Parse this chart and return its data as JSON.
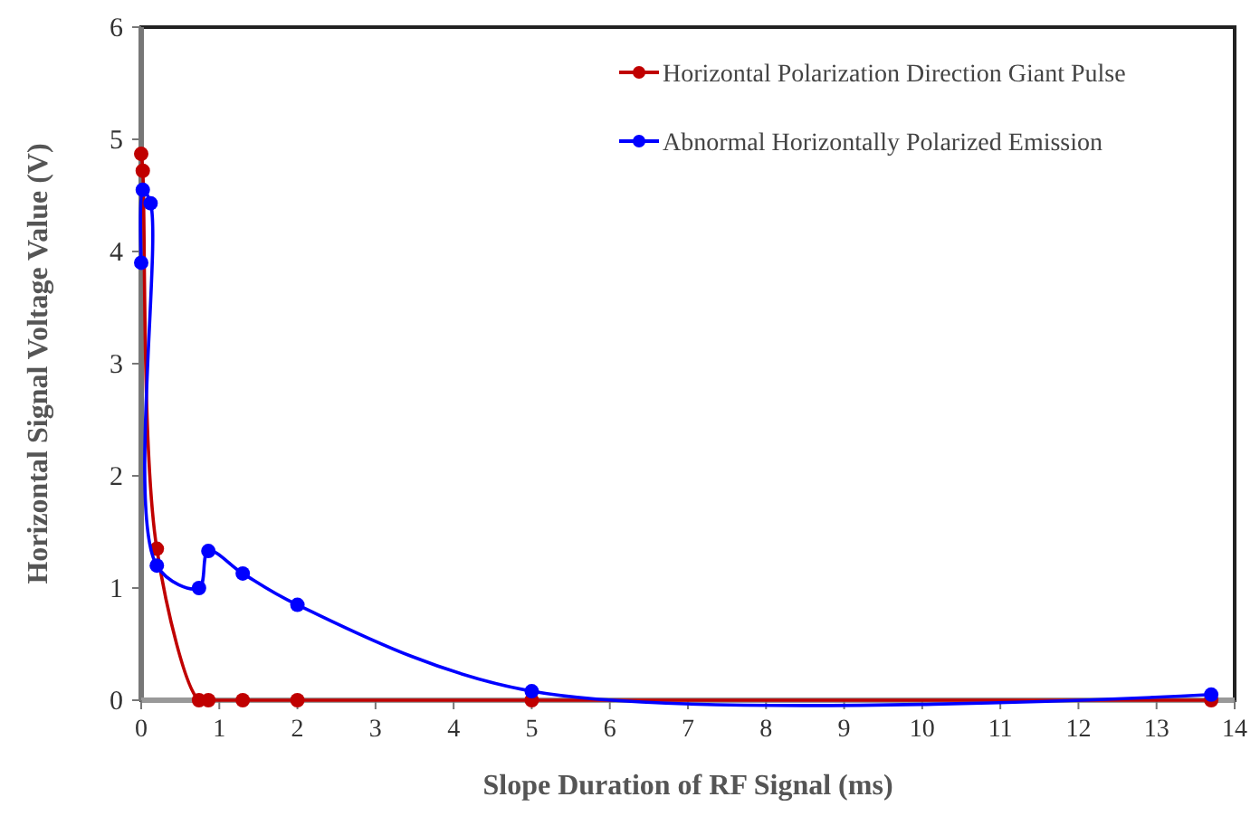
{
  "chart_data": {
    "type": "line",
    "xlabel": "Slope Duration of RF Signal (ms)",
    "ylabel": "Horizontal Signal Voltage Value (V)",
    "xlim": [
      0,
      14
    ],
    "xticks": [
      0,
      1,
      2,
      3,
      4,
      5,
      6,
      7,
      8,
      9,
      10,
      11,
      12,
      13,
      14
    ],
    "ylim": [
      0,
      6
    ],
    "yticks": [
      0,
      1,
      2,
      3,
      4,
      5,
      6
    ],
    "grid": false,
    "legend": "top right",
    "marker": "circle",
    "line_style": "solid",
    "series": [
      {
        "name": "Horizontal Polarization Direction Giant Pulse",
        "color": "#c00000",
        "x": [
          0,
          0.02,
          0.2,
          0.74,
          0.86,
          1.3,
          2,
          5,
          13.7
        ],
        "values": [
          4.87,
          4.72,
          1.35,
          0,
          0,
          0,
          0,
          0,
          0
        ]
      },
      {
        "name": "Abnormal Horizontally Polarized Emission",
        "color": "#0000ff",
        "x": [
          0,
          0.02,
          0.12,
          0.2,
          0.74,
          0.86,
          1.3,
          2,
          5,
          13.7
        ],
        "values": [
          3.9,
          4.55,
          4.43,
          1.2,
          1.0,
          1.33,
          1.13,
          0.85,
          0.08,
          0.05
        ]
      }
    ]
  }
}
